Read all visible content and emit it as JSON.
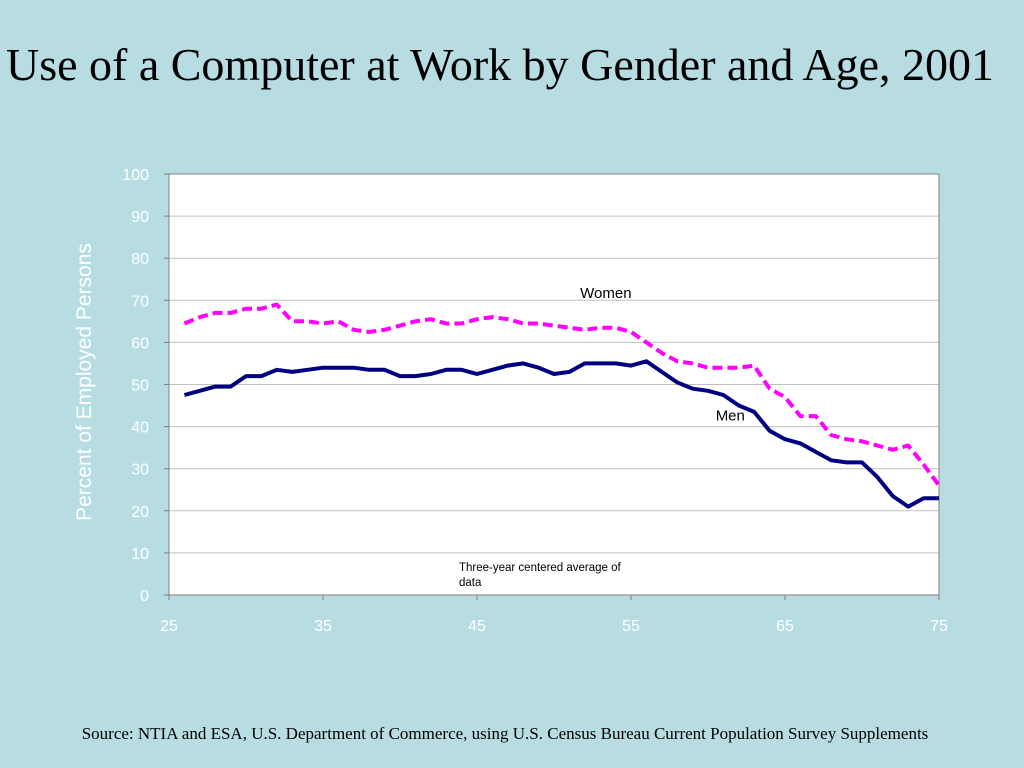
{
  "slide": {
    "title": "Use of a Computer at Work by Gender and Age, 2001",
    "source": "Source: NTIA and ESA, U.S. Department of Commerce, using U.S. Census Bureau Current Population Survey Supplements"
  },
  "chart_data": {
    "type": "line",
    "title": "",
    "xlabel": "",
    "ylabel": "Percent of Employed Persons",
    "xlim": [
      25,
      75
    ],
    "ylim": [
      0,
      100
    ],
    "xticks": [
      25,
      35,
      45,
      55,
      65,
      75
    ],
    "yticks": [
      0,
      10,
      20,
      30,
      40,
      50,
      60,
      70,
      80,
      90,
      100
    ],
    "grid": "horizontal",
    "note": "Three-year centered average of",
    "note_cut": "data",
    "colors": {
      "women": "#ff00ff",
      "men": "#000080",
      "plot_bg": "#ffffff",
      "grid": "#c0c0c0",
      "tick_text": "#ffffff",
      "axis_label": "#ffffff"
    },
    "x": [
      26,
      27,
      28,
      29,
      30,
      31,
      32,
      33,
      34,
      35,
      36,
      37,
      38,
      39,
      40,
      41,
      42,
      43,
      44,
      45,
      46,
      47,
      48,
      49,
      50,
      51,
      52,
      53,
      54,
      55,
      56,
      57,
      58,
      59,
      60,
      61,
      62,
      63,
      64,
      65,
      66,
      67,
      68,
      69,
      70,
      71,
      72,
      73,
      74,
      75
    ],
    "series": [
      {
        "name": "Women",
        "key": "women",
        "label_x": 51.7,
        "label_y": 70.5,
        "values": [
          64.5,
          66,
          67,
          67,
          68,
          68,
          69,
          65,
          65,
          64.5,
          65,
          63,
          62.5,
          63,
          64,
          65,
          65.5,
          64.5,
          64.5,
          65.5,
          66,
          65.5,
          64.5,
          64.5,
          64,
          63.5,
          63,
          63.5,
          63.5,
          62.5,
          60,
          57.5,
          55.5,
          55,
          54,
          54,
          54,
          54.5,
          49,
          47,
          42.5,
          42.5,
          38,
          37,
          36.5,
          35.5,
          34.5,
          35.5,
          31,
          26
        ]
      },
      {
        "name": "Men",
        "key": "men",
        "label_x": 60.5,
        "label_y": 41.5,
        "values": [
          47.5,
          48.5,
          49.5,
          49.5,
          52,
          52,
          53.5,
          53,
          53.5,
          54,
          54,
          54,
          53.5,
          53.5,
          52,
          52,
          52.5,
          53.5,
          53.5,
          52.5,
          53.5,
          54.5,
          55,
          54,
          52.5,
          53,
          55,
          55,
          55,
          54.5,
          55.5,
          53,
          50.5,
          49,
          48.5,
          47.5,
          45,
          43.5,
          39,
          37,
          36,
          34,
          32,
          31.5,
          31.5,
          28,
          23.5,
          21,
          23,
          23
        ]
      }
    ]
  }
}
